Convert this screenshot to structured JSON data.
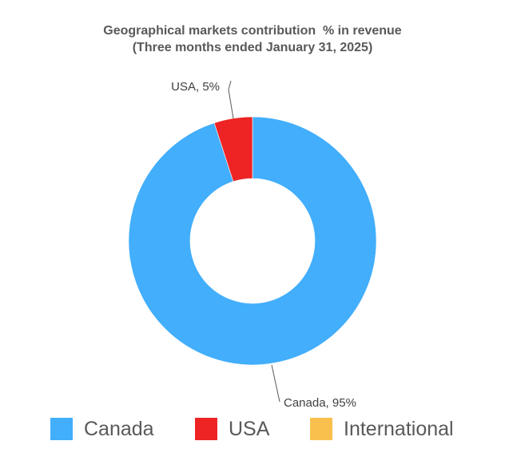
{
  "chart_data": {
    "type": "pie",
    "subtype": "donut",
    "title": "Geographical markets contribution  % in revenue",
    "subtitle": "(Three months ended January 31, 2025)",
    "categories": [
      "Canada",
      "USA",
      "International"
    ],
    "values": [
      95,
      5,
      0
    ],
    "colors": [
      "#42aefc",
      "#ee2424",
      "#f9c04e"
    ],
    "data_labels": [
      "Canada, 95%",
      "USA, 5%",
      ""
    ],
    "legend_position": "bottom"
  }
}
